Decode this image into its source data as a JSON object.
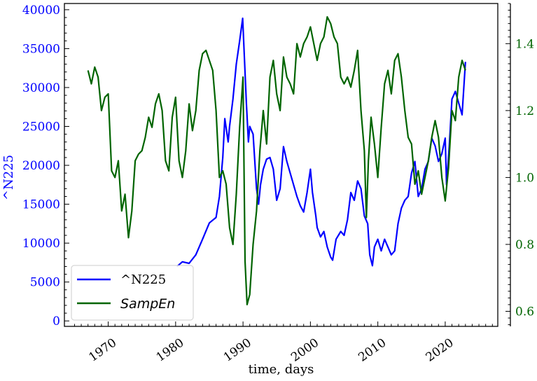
{
  "chart_data": {
    "type": "line",
    "xlabel": "time, days",
    "ylabel_left": "^N225",
    "x_ticks": [
      1970,
      1980,
      1990,
      2000,
      2010,
      2020
    ],
    "x_range": [
      1963.5,
      2027.8
    ],
    "y_left_ticks": [
      0,
      5000,
      10000,
      15000,
      20000,
      25000,
      30000,
      35000,
      40000
    ],
    "y_left_range": [
      -700,
      40800
    ],
    "y_right_ticks": [
      0.6,
      0.8,
      1.0,
      1.2,
      1.4
    ],
    "y_right_range": [
      0.555,
      1.52
    ],
    "colors": {
      "left_axis": "#0000ff",
      "right_axis": "#006400",
      "n225": "#0000ff",
      "sampen": "#006400"
    },
    "legend": {
      "position": "lower-left",
      "entries": [
        "^N225",
        "SampEn"
      ]
    },
    "series": [
      {
        "name": "^N225",
        "axis": "left",
        "x": [
          1980.2,
          1981.0,
          1982.0,
          1983.0,
          1984.0,
          1985.0,
          1986.0,
          1986.5,
          1987.0,
          1987.3,
          1987.8,
          1988.0,
          1988.5,
          1989.0,
          1989.5,
          1989.95,
          1990.2,
          1990.5,
          1990.8,
          1991.0,
          1991.5,
          1992.0,
          1992.3,
          1992.6,
          1993.0,
          1993.5,
          1994.0,
          1994.5,
          1995.0,
          1995.5,
          1996.0,
          1996.5,
          1997.0,
          1997.5,
          1998.0,
          1998.5,
          1999.0,
          1999.5,
          2000.0,
          2000.3,
          2000.8,
          2001.0,
          2001.5,
          2002.0,
          2002.5,
          2003.0,
          2003.3,
          2003.8,
          2004.5,
          2005.0,
          2005.5,
          2006.0,
          2006.5,
          2007.0,
          2007.5,
          2008.0,
          2008.5,
          2008.8,
          2009.2,
          2009.5,
          2010.0,
          2010.5,
          2011.0,
          2011.5,
          2012.0,
          2012.5,
          2013.0,
          2013.5,
          2014.0,
          2014.5,
          2015.0,
          2015.5,
          2016.0,
          2016.5,
          2017.0,
          2017.5,
          2018.0,
          2018.5,
          2019.0,
          2019.5,
          2020.0,
          2020.2,
          2020.6,
          2021.0,
          2021.5,
          2022.0,
          2022.5,
          2023.0
        ],
        "y": [
          7000,
          7600,
          7400,
          8500,
          10500,
          12600,
          13300,
          16000,
          21000,
          26000,
          23000,
          25000,
          28500,
          33000,
          36000,
          38900,
          34000,
          28000,
          23000,
          25000,
          24000,
          17000,
          15000,
          17500,
          19500,
          20800,
          21000,
          19500,
          15500,
          17000,
          22400,
          20500,
          19000,
          17500,
          16000,
          14800,
          14000,
          16500,
          19500,
          16500,
          13500,
          12000,
          10800,
          11500,
          9500,
          8200,
          7800,
          10500,
          11500,
          11000,
          13000,
          16500,
          15500,
          18000,
          17000,
          13500,
          12500,
          8500,
          7100,
          9500,
          10500,
          9000,
          10500,
          9500,
          8500,
          9000,
          12500,
          14500,
          15500,
          16000,
          19000,
          20500,
          16000,
          17000,
          19500,
          20500,
          23500,
          22500,
          20500,
          21500,
          23500,
          17500,
          22500,
          28500,
          29500,
          28000,
          26500,
          33300
        ]
      },
      {
        "name": "SampEn",
        "axis": "right",
        "x": [
          1967.0,
          1967.5,
          1968.0,
          1968.5,
          1969.0,
          1969.5,
          1970.0,
          1970.5,
          1971.0,
          1971.5,
          1972.0,
          1972.5,
          1973.0,
          1973.5,
          1974.0,
          1974.5,
          1975.0,
          1975.5,
          1976.0,
          1976.5,
          1977.0,
          1977.5,
          1978.0,
          1978.5,
          1979.0,
          1979.5,
          1980.0,
          1980.5,
          1981.0,
          1981.5,
          1982.0,
          1982.5,
          1983.0,
          1983.5,
          1984.0,
          1984.5,
          1985.0,
          1985.5,
          1986.0,
          1986.5,
          1987.0,
          1987.5,
          1988.0,
          1988.5,
          1989.0,
          1989.5,
          1990.0,
          1990.3,
          1990.6,
          1991.0,
          1991.5,
          1992.0,
          1992.5,
          1993.0,
          1993.5,
          1994.0,
          1994.5,
          1995.0,
          1995.5,
          1996.0,
          1996.5,
          1997.0,
          1997.5,
          1998.0,
          1998.5,
          1999.0,
          1999.5,
          2000.0,
          2000.5,
          2001.0,
          2001.5,
          2002.0,
          2002.5,
          2003.0,
          2003.5,
          2004.0,
          2004.5,
          2005.0,
          2005.5,
          2006.0,
          2006.5,
          2007.0,
          2007.5,
          2008.0,
          2008.3,
          2008.6,
          2009.0,
          2009.5,
          2010.0,
          2010.5,
          2011.0,
          2011.5,
          2012.0,
          2012.5,
          2013.0,
          2013.5,
          2014.0,
          2014.5,
          2015.0,
          2015.5,
          2016.0,
          2016.5,
          2017.0,
          2017.5,
          2018.0,
          2018.5,
          2019.0,
          2019.5,
          2020.0,
          2020.5,
          2021.0,
          2021.5,
          2022.0,
          2022.5,
          2023.0
        ],
        "y": [
          1.32,
          1.28,
          1.33,
          1.3,
          1.2,
          1.24,
          1.25,
          1.02,
          1.0,
          1.05,
          0.9,
          0.95,
          0.82,
          0.9,
          1.05,
          1.07,
          1.08,
          1.12,
          1.18,
          1.15,
          1.22,
          1.25,
          1.2,
          1.05,
          1.02,
          1.18,
          1.24,
          1.05,
          1.0,
          1.08,
          1.22,
          1.14,
          1.2,
          1.32,
          1.37,
          1.38,
          1.35,
          1.32,
          1.2,
          1.0,
          1.02,
          0.98,
          0.85,
          0.8,
          0.95,
          1.15,
          1.3,
          0.75,
          0.62,
          0.65,
          0.8,
          0.9,
          1.08,
          1.2,
          1.1,
          1.3,
          1.35,
          1.25,
          1.2,
          1.36,
          1.3,
          1.28,
          1.25,
          1.4,
          1.36,
          1.4,
          1.42,
          1.45,
          1.4,
          1.35,
          1.4,
          1.42,
          1.48,
          1.46,
          1.42,
          1.4,
          1.3,
          1.28,
          1.3,
          1.27,
          1.32,
          1.38,
          1.2,
          1.08,
          0.88,
          1.05,
          1.18,
          1.1,
          1.0,
          1.15,
          1.28,
          1.32,
          1.25,
          1.35,
          1.37,
          1.3,
          1.2,
          1.12,
          1.1,
          0.98,
          1.02,
          0.95,
          1.0,
          1.05,
          1.12,
          1.17,
          1.12,
          1.0,
          0.93,
          1.03,
          1.2,
          1.17,
          1.3,
          1.35,
          1.32
        ]
      }
    ]
  }
}
